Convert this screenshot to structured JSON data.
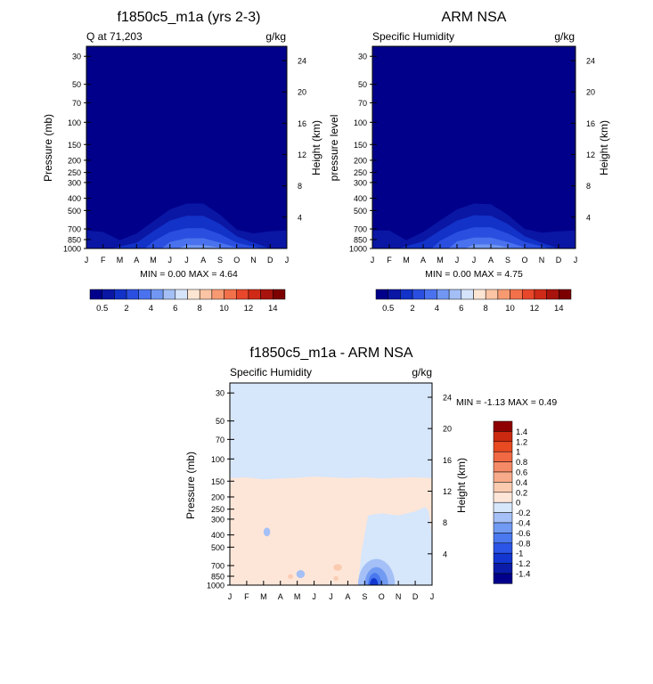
{
  "colors": {
    "panel_bg": "#00008b",
    "humidity_scale": [
      "#00008b",
      "#0a16a4",
      "#1232c8",
      "#2a4fe0",
      "#4a72ee",
      "#7197f2",
      "#a4bff5",
      "#d5e4fa",
      "#fde5d4",
      "#fbc4a4",
      "#f79a72",
      "#f2704a",
      "#e8472b",
      "#cf2a17",
      "#a8140d",
      "#7c0000"
    ],
    "diff_scale": [
      "#00008b",
      "#0a1ca8",
      "#1236cf",
      "#2a55e6",
      "#4a78ee",
      "#719af2",
      "#a4c0f6",
      "#d6e6fb",
      "#fde6d8",
      "#fbcbb0",
      "#f8ab8a",
      "#f58a66",
      "#f06943",
      "#e84a22",
      "#cc2a10",
      "#8f0000"
    ]
  },
  "chart_data": [
    {
      "type": "contour",
      "title": "f1850c5_m1a (yrs 2-3)",
      "left_label": "Q at 71,203",
      "units": "g/kg",
      "ylabel": "Pressure (mb)",
      "y2label": "Height (km)",
      "x_ticks": [
        "J",
        "F",
        "M",
        "A",
        "M",
        "J",
        "J",
        "A",
        "S",
        "O",
        "N",
        "D",
        "J"
      ],
      "y_ticks": [
        30,
        50,
        70,
        100,
        150,
        200,
        250,
        300,
        400,
        500,
        700,
        850,
        1000
      ],
      "y2_ticks": [
        24,
        20,
        16,
        12,
        8,
        4
      ],
      "ylim": [
        1000,
        25
      ],
      "stats": "MIN =   0.00 MAX =   4.64",
      "colorbar_labels": [
        "0.5",
        "2",
        "4",
        "6",
        "8",
        "10",
        "12",
        "14"
      ],
      "levels": [
        {
          "level": 0.5,
          "months": [
            0,
            1,
            2,
            3,
            4,
            5,
            6,
            7,
            8,
            9,
            10,
            11,
            12
          ],
          "top_mb": [
            720,
            740,
            860,
            760,
            610,
            490,
            440,
            440,
            540,
            710,
            760,
            730,
            720
          ]
        },
        {
          "level": 1,
          "months": [
            1.5,
            3,
            4,
            5,
            6,
            7,
            8,
            9,
            10,
            11
          ],
          "top_mb": [
            1000,
            900,
            730,
            600,
            550,
            550,
            640,
            800,
            900,
            1000
          ]
        },
        {
          "level": 2,
          "months": [
            3.5,
            4,
            5,
            6,
            7,
            8,
            9,
            10.5
          ],
          "top_mb": [
            1000,
            880,
            740,
            690,
            690,
            770,
            900,
            1000
          ]
        },
        {
          "level": 3,
          "months": [
            4.5,
            5,
            6,
            7,
            8,
            9.2
          ],
          "top_mb": [
            1000,
            890,
            830,
            830,
            900,
            1000
          ]
        },
        {
          "level": 4,
          "months": [
            5.5,
            6,
            7,
            7.5,
            8.3
          ],
          "top_mb": [
            1000,
            940,
            940,
            960,
            1000
          ]
        }
      ]
    },
    {
      "type": "contour",
      "title": "ARM NSA",
      "left_label": "Specific Humidity",
      "units": "g/kg",
      "ylabel": "pressure level",
      "y2label": "Height (km)",
      "x_ticks": [
        "J",
        "F",
        "M",
        "A",
        "M",
        "J",
        "J",
        "A",
        "S",
        "O",
        "N",
        "D",
        "J"
      ],
      "y_ticks": [
        30,
        50,
        70,
        100,
        150,
        200,
        250,
        300,
        400,
        500,
        700,
        850,
        1000
      ],
      "y2_ticks": [
        24,
        20,
        16,
        12,
        8,
        4
      ],
      "ylim": [
        1000,
        25
      ],
      "stats": "MIN =   0.00 MAX =   4.75",
      "colorbar_labels": [
        "0.5",
        "2",
        "4",
        "6",
        "8",
        "10",
        "12",
        "14"
      ],
      "levels": [
        {
          "level": 0.5,
          "months": [
            0,
            1,
            2,
            3,
            4,
            5,
            6,
            7,
            8,
            9,
            10,
            11,
            12
          ],
          "top_mb": [
            720,
            720,
            860,
            740,
            600,
            490,
            440,
            445,
            540,
            700,
            750,
            730,
            720
          ]
        },
        {
          "level": 1,
          "months": [
            1.5,
            3,
            4,
            5,
            6,
            7,
            8,
            9,
            10,
            11
          ],
          "top_mb": [
            1000,
            880,
            720,
            600,
            545,
            550,
            640,
            800,
            900,
            1000
          ]
        },
        {
          "level": 2,
          "months": [
            3.5,
            4,
            5,
            6,
            7,
            8,
            9,
            10.5
          ],
          "top_mb": [
            1000,
            870,
            740,
            680,
            680,
            760,
            890,
            1000
          ]
        },
        {
          "level": 3,
          "months": [
            4.5,
            5,
            6,
            7,
            8,
            9.2
          ],
          "top_mb": [
            1000,
            880,
            820,
            820,
            890,
            1000
          ]
        },
        {
          "level": 4,
          "months": [
            5.5,
            6,
            7,
            7.5,
            8.3
          ],
          "top_mb": [
            1000,
            930,
            930,
            950,
            1000
          ]
        }
      ]
    },
    {
      "type": "contour",
      "title": "f1850c5_m1a - ARM NSA",
      "left_label": "Specific Humidity",
      "units": "g/kg",
      "ylabel": "Pressure (mb)",
      "y2label": "Height (km)",
      "x_ticks": [
        "J",
        "F",
        "M",
        "A",
        "M",
        "J",
        "J",
        "A",
        "S",
        "O",
        "N",
        "D",
        "J"
      ],
      "y_ticks": [
        30,
        50,
        70,
        100,
        150,
        200,
        250,
        300,
        400,
        500,
        700,
        850,
        1000
      ],
      "y2_ticks": [
        24,
        20,
        16,
        12,
        8,
        4
      ],
      "ylim": [
        1000,
        25
      ],
      "stats": "MIN =  -1.13 MAX =   0.49",
      "colorbar_labels": [
        "1.4",
        "1.2",
        "1",
        "0.8",
        "0.6",
        "0.4",
        "0.2",
        "0",
        "-0.2",
        "-0.4",
        "-0.6",
        "-0.8",
        "-1",
        "-1.2",
        "-1.4"
      ],
      "background_level": -0.1,
      "positive_region": {
        "level": 0.1,
        "months": [
          0,
          1,
          2,
          3,
          4,
          5,
          6,
          7,
          8,
          9,
          10,
          11,
          12
        ],
        "top_mb": [
          142,
          140,
          145,
          143,
          141,
          138,
          140,
          142,
          140,
          143,
          141,
          140,
          142
        ]
      },
      "blobs": [
        {
          "level": -0.1,
          "shape": "void",
          "months": [
            7.6,
            7.8,
            8.2,
            9,
            10,
            11,
            11.6,
            11.8,
            12,
            12,
            7.6
          ],
          "mb": [
            1000,
            560,
            280,
            270,
            280,
            260,
            240,
            260,
            400,
            1000,
            1000
          ]
        },
        {
          "level": 0.3,
          "month": 6.4,
          "mb": 720,
          "rx_months": 0.25,
          "mb_span": [
            680,
            770
          ]
        },
        {
          "level": 0.3,
          "month": 6.3,
          "mb": 880,
          "rx_months": 0.15,
          "mb_span": [
            850,
            920
          ]
        },
        {
          "level": 0.3,
          "month": 3.6,
          "mb": 850,
          "rx_months": 0.15,
          "mb_span": [
            820,
            890
          ]
        },
        {
          "level": -0.3,
          "month": 4.2,
          "mb": 820,
          "rx_months": 0.25,
          "mb_span": [
            760,
            880
          ]
        },
        {
          "level": -0.3,
          "month": 2.2,
          "mb": 380,
          "rx_months": 0.2,
          "mb_span": [
            350,
            410
          ]
        },
        {
          "level": -0.3,
          "month": 8.5,
          "months_span": [
            7.6,
            9.8
          ],
          "mb_span": [
            620,
            1000
          ]
        },
        {
          "level": -0.5,
          "month": 8.5,
          "months_span": [
            8.0,
            9.4
          ],
          "mb_span": [
            720,
            1000
          ]
        },
        {
          "level": -0.7,
          "month": 8.5,
          "months_span": [
            8.2,
            9.0
          ],
          "mb_span": [
            800,
            1000
          ]
        },
        {
          "level": -0.9,
          "month": 8.5,
          "months_span": [
            8.3,
            8.8
          ],
          "mb_span": [
            880,
            1000
          ]
        }
      ]
    }
  ]
}
